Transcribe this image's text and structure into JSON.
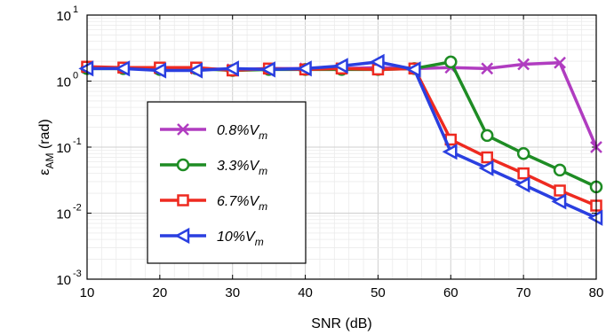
{
  "chart_data": {
    "type": "line",
    "title": "",
    "xlabel": "SNR (dB)",
    "ylabel_main": "ε",
    "ylabel_sub": "AM",
    "ylabel_unit": " (rad)",
    "xlim": [
      10,
      80
    ],
    "ylim": [
      0.001,
      10
    ],
    "yscale": "log",
    "grid": true,
    "legend_position": "center-left",
    "xticks": [
      10,
      20,
      30,
      40,
      50,
      60,
      70,
      80
    ],
    "xtick_labels": [
      "10",
      "20",
      "30",
      "40",
      "50",
      "60",
      "70",
      "80"
    ],
    "yticks": [
      0.001,
      0.01,
      0.1,
      1,
      10
    ],
    "ytick_labels": [
      {
        "base": "10",
        "exp": "-3"
      },
      {
        "base": "10",
        "exp": "-2"
      },
      {
        "base": "10",
        "exp": "-1"
      },
      {
        "base": "10",
        "exp": "0"
      },
      {
        "base": "10",
        "exp": "1"
      }
    ],
    "x": [
      10,
      15,
      20,
      25,
      30,
      35,
      40,
      45,
      50,
      55,
      60,
      65,
      70,
      75,
      80
    ],
    "series": [
      {
        "label_main": "0.8%V",
        "label_sub": "m",
        "color": "#b03cc0",
        "marker": "x",
        "values": [
          1.6,
          1.6,
          1.55,
          1.55,
          1.5,
          1.55,
          1.55,
          1.55,
          1.6,
          1.55,
          1.6,
          1.55,
          1.8,
          1.9,
          0.1
        ]
      },
      {
        "label_main": "3.3%V",
        "label_sub": "m",
        "color": "#1e8c24",
        "marker": "circle",
        "values": [
          1.55,
          1.55,
          1.5,
          1.55,
          1.45,
          1.5,
          1.5,
          1.5,
          1.5,
          1.55,
          1.95,
          0.15,
          0.08,
          0.045,
          0.025
        ]
      },
      {
        "label_main": "6.7%V",
        "label_sub": "m",
        "color": "#ee2a20",
        "marker": "square",
        "values": [
          1.65,
          1.6,
          1.6,
          1.6,
          1.45,
          1.55,
          1.5,
          1.55,
          1.5,
          1.55,
          0.13,
          0.07,
          0.04,
          0.022,
          0.013
        ]
      },
      {
        "label_main": "10%V",
        "label_sub": "m",
        "color": "#2a3fe0",
        "marker": "triangle-left",
        "values": [
          1.55,
          1.55,
          1.45,
          1.45,
          1.55,
          1.5,
          1.55,
          1.7,
          1.95,
          1.5,
          0.085,
          0.048,
          0.027,
          0.015,
          0.0085
        ]
      }
    ]
  }
}
